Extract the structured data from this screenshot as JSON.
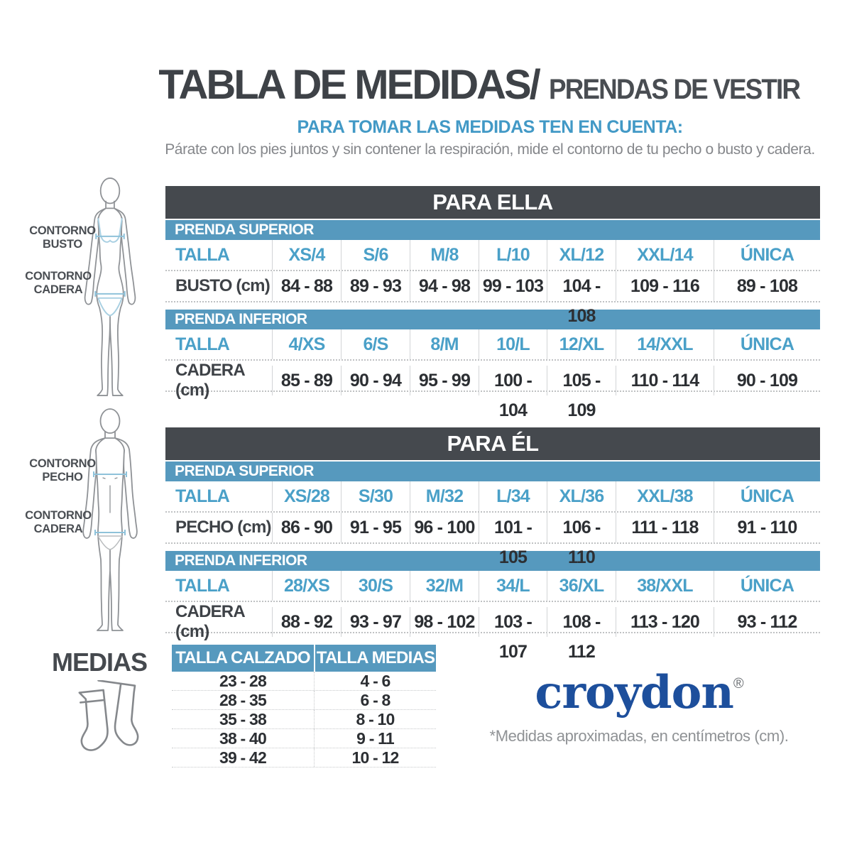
{
  "header": {
    "title_main": "TABLA DE MEDIDAS/",
    "title_sub": "PRENDAS DE VESTIR",
    "subtitle": "PARA TOMAR LAS MEDIDAS TEN EN CUENTA:",
    "description": "Párate con los pies juntos y sin contener la respiración, mide el contorno de tu pecho o busto y cadera."
  },
  "figures": {
    "female": {
      "label_bust": "CONTORNO BUSTO",
      "label_hip": "CONTORNO CADERA"
    },
    "male": {
      "label_chest": "CONTORNO PECHO",
      "label_hip": "CONTORNO CADERA"
    }
  },
  "women_table": {
    "title": "PARA ELLA",
    "sections": [
      {
        "band": "PRENDA SUPERIOR",
        "size_row": {
          "label": "TALLA",
          "values": [
            "XS/4",
            "S/6",
            "M/8",
            "L/10",
            "XL/12",
            "XXL/14",
            "ÚNICA"
          ]
        },
        "measure_row": {
          "label": "BUSTO (cm)",
          "values": [
            "84 - 88",
            "89 - 93",
            "94 - 98",
            "99 - 103",
            "104 - 108",
            "109 - 116",
            "89 - 108"
          ]
        }
      },
      {
        "band": "PRENDA INFERIOR",
        "size_row": {
          "label": "TALLA",
          "values": [
            "4/XS",
            "6/S",
            "8/M",
            "10/L",
            "12/XL",
            "14/XXL",
            "ÚNICA"
          ]
        },
        "measure_row": {
          "label": "CADERA (cm)",
          "values": [
            "85 - 89",
            "90 - 94",
            "95 - 99",
            "100 - 104",
            "105 - 109",
            "110 - 114",
            "90 - 109"
          ]
        }
      }
    ]
  },
  "men_table": {
    "title": "PARA ÉL",
    "sections": [
      {
        "band": "PRENDA SUPERIOR",
        "size_row": {
          "label": "TALLA",
          "values": [
            "XS/28",
            "S/30",
            "M/32",
            "L/34",
            "XL/36",
            "XXL/38",
            "ÚNICA"
          ]
        },
        "measure_row": {
          "label": "PECHO (cm)",
          "values": [
            "86 - 90",
            "91 - 95",
            "96 - 100",
            "101 - 105",
            "106 - 110",
            "111 - 118",
            "91 - 110"
          ]
        }
      },
      {
        "band": "PRENDA INFERIOR",
        "size_row": {
          "label": "TALLA",
          "values": [
            "28/XS",
            "30/S",
            "32/M",
            "34/L",
            "36/XL",
            "38/XXL",
            "ÚNICA"
          ]
        },
        "measure_row": {
          "label": "CADERA (cm)",
          "values": [
            "88 - 92",
            "93 - 97",
            "98 - 102",
            "103 - 107",
            "108 - 112",
            "113 - 120",
            "93 - 112"
          ]
        }
      }
    ]
  },
  "socks": {
    "title": "MEDIAS",
    "headers": [
      "TALLA CALZADO",
      "TALLA MEDIAS"
    ],
    "rows": [
      [
        "23 - 28",
        "4 - 6"
      ],
      [
        "28 - 35",
        "6 - 8"
      ],
      [
        "35 - 38",
        "8 - 10"
      ],
      [
        "38 - 40",
        "9 - 11"
      ],
      [
        "39 - 42",
        "10 - 12"
      ]
    ]
  },
  "brand": {
    "logo": "croydon",
    "registered": "®",
    "footnote": "*Medidas aproximadas, en centímetros (cm)."
  },
  "colors": {
    "dark_band": "#45494e",
    "blue_band": "#5699be",
    "blue_text": "#4aa0c8",
    "croydon_blue": "#1d4f9c"
  }
}
